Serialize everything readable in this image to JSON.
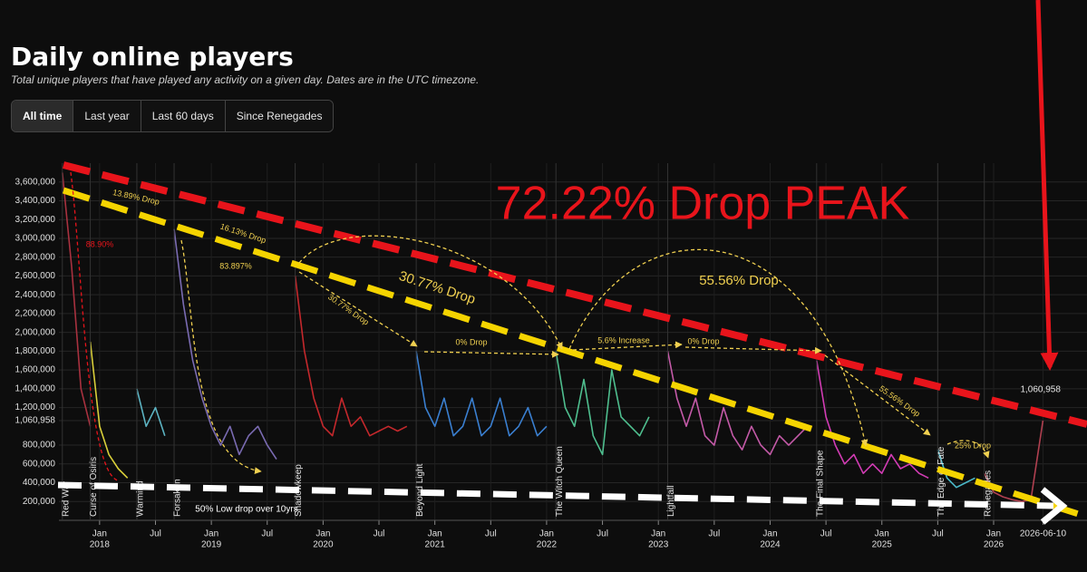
{
  "header": {
    "title": "Daily online players",
    "subtitle": "Total unique players that have played any activity on a given day. Dates are in the UTC timezone."
  },
  "tabs": [
    "All time",
    "Last year",
    "Last 60 days",
    "Since Renegades"
  ],
  "chart_data": {
    "type": "line",
    "ylim": [
      0,
      3800000
    ],
    "yticks": [
      {
        "value": 200000,
        "label": "200,000"
      },
      {
        "value": 400000,
        "label": "400,000"
      },
      {
        "value": 600000,
        "label": "600,000"
      },
      {
        "value": 800000,
        "label": "800,000"
      },
      {
        "value": 1060958,
        "label": "1,060,958"
      },
      {
        "value": 1200000,
        "label": "1,200,000"
      },
      {
        "value": 1400000,
        "label": "1,400,000"
      },
      {
        "value": 1600000,
        "label": "1,600,000"
      },
      {
        "value": 1800000,
        "label": "1,800,000"
      },
      {
        "value": 2000000,
        "label": "2,000,000"
      },
      {
        "value": 2200000,
        "label": "2,200,000"
      },
      {
        "value": 2400000,
        "label": "2,400,000"
      },
      {
        "value": 2600000,
        "label": "2,600,000"
      },
      {
        "value": 2800000,
        "label": "2,800,000"
      },
      {
        "value": 3000000,
        "label": "3,000,000"
      },
      {
        "value": 3200000,
        "label": "3,200,000"
      },
      {
        "value": 3400000,
        "label": "3,400,000"
      },
      {
        "value": 3600000,
        "label": "3,600,000"
      }
    ],
    "xlim": [
      "2017-08-20",
      "2026-07-05"
    ],
    "xticks": [
      {
        "value": "2018-01",
        "label": "Jan",
        "year": "2018"
      },
      {
        "value": "2018-07",
        "label": "Jul"
      },
      {
        "value": "2019-01",
        "label": "Jan",
        "year": "2019"
      },
      {
        "value": "2019-07",
        "label": "Jul"
      },
      {
        "value": "2020-01",
        "label": "Jan",
        "year": "2020"
      },
      {
        "value": "2020-07",
        "label": "Jul"
      },
      {
        "value": "2021-01",
        "label": "Jan",
        "year": "2021"
      },
      {
        "value": "2021-07",
        "label": "Jul"
      },
      {
        "value": "2022-01",
        "label": "Jan",
        "year": "2022"
      },
      {
        "value": "2022-07",
        "label": "Jul"
      },
      {
        "value": "2023-01",
        "label": "Jan",
        "year": "2023"
      },
      {
        "value": "2023-07",
        "label": "Jul"
      },
      {
        "value": "2024-01",
        "label": "Jan",
        "year": "2024"
      },
      {
        "value": "2024-07",
        "label": "Jul"
      },
      {
        "value": "2025-01",
        "label": "Jan",
        "year": "2025"
      },
      {
        "value": "2025-07",
        "label": "Jul"
      },
      {
        "value": "2026-01",
        "label": "Jan",
        "year": "2026"
      },
      {
        "value": "2026-06-10",
        "label": "2026-06-10"
      }
    ],
    "grid": true,
    "series": [
      {
        "name": "Red War",
        "color": "#a8313f",
        "x": [
          "2017-09",
          "2017-10",
          "2017-11",
          "2017-12"
        ],
        "values": [
          3700000,
          2700000,
          1400000,
          1000000
        ]
      },
      {
        "name": "Curse of Osiris",
        "color": "#d9cf3a",
        "x": [
          "2017-12",
          "2018-01",
          "2018-02",
          "2018-03",
          "2018-04"
        ],
        "values": [
          1900000,
          1000000,
          700000,
          550000,
          450000
        ]
      },
      {
        "name": "Warmind",
        "color": "#5cb3c2",
        "x": [
          "2018-05",
          "2018-06",
          "2018-07",
          "2018-08"
        ],
        "values": [
          1400000,
          1000000,
          1200000,
          900000
        ]
      },
      {
        "name": "Forsaken",
        "color": "#7a6bb2",
        "x": [
          "2018-09",
          "2018-10",
          "2018-11",
          "2018-12",
          "2019-01",
          "2019-02",
          "2019-03",
          "2019-04",
          "2019-05",
          "2019-06",
          "2019-07",
          "2019-08"
        ],
        "values": [
          3100000,
          2300000,
          1700000,
          1300000,
          1000000,
          800000,
          1000000,
          700000,
          900000,
          1000000,
          800000,
          650000
        ]
      },
      {
        "name": "Shadowkeep",
        "color": "#c4282c",
        "x": [
          "2019-10",
          "2019-11",
          "2019-12",
          "2020-01",
          "2020-02",
          "2020-03",
          "2020-04",
          "2020-05",
          "2020-06",
          "2020-07",
          "2020-08",
          "2020-09",
          "2020-10"
        ],
        "values": [
          2600000,
          1800000,
          1300000,
          1000000,
          900000,
          1300000,
          1000000,
          1100000,
          900000,
          950000,
          1000000,
          950000,
          1000000
        ]
      },
      {
        "name": "Beyond Light",
        "color": "#3a7fd0",
        "x": [
          "2020-11",
          "2020-12",
          "2021-01",
          "2021-02",
          "2021-03",
          "2021-04",
          "2021-05",
          "2021-06",
          "2021-07",
          "2021-08",
          "2021-09",
          "2021-10",
          "2021-11",
          "2021-12",
          "2022-01"
        ],
        "values": [
          1800000,
          1200000,
          1000000,
          1300000,
          900000,
          1000000,
          1300000,
          900000,
          1000000,
          1300000,
          900000,
          1000000,
          1200000,
          900000,
          1000000
        ]
      },
      {
        "name": "The Witch Queen",
        "color": "#4fbf8f",
        "x": [
          "2022-02",
          "2022-03",
          "2022-04",
          "2022-05",
          "2022-06",
          "2022-07",
          "2022-08",
          "2022-09",
          "2022-10",
          "2022-11",
          "2022-12"
        ],
        "values": [
          1800000,
          1200000,
          1000000,
          1500000,
          900000,
          700000,
          1600000,
          1100000,
          1000000,
          900000,
          1100000
        ]
      },
      {
        "name": "Lightfall",
        "color": "#c45aa8",
        "x": [
          "2023-02",
          "2023-03",
          "2023-04",
          "2023-05",
          "2023-06",
          "2023-07",
          "2023-08",
          "2023-09",
          "2023-10",
          "2023-11",
          "2023-12",
          "2024-01",
          "2024-02",
          "2024-03",
          "2024-04",
          "2024-05"
        ],
        "values": [
          1800000,
          1300000,
          1000000,
          1300000,
          900000,
          800000,
          1200000,
          900000,
          750000,
          1000000,
          800000,
          700000,
          900000,
          800000,
          900000,
          1000000
        ]
      },
      {
        "name": "The Final Shape",
        "color": "#d23cb4",
        "x": [
          "2024-06",
          "2024-07",
          "2024-08",
          "2024-09",
          "2024-10",
          "2024-11",
          "2024-12",
          "2025-01",
          "2025-02",
          "2025-03",
          "2025-04",
          "2025-05",
          "2025-06"
        ],
        "values": [
          1700000,
          1100000,
          800000,
          600000,
          700000,
          500000,
          600000,
          500000,
          700000,
          550000,
          600000,
          500000,
          450000
        ]
      },
      {
        "name": "The Edge of Fate",
        "color": "#4ab8c8",
        "x": [
          "2025-07",
          "2025-08",
          "2025-09",
          "2025-10",
          "2025-11"
        ],
        "values": [
          750000,
          450000,
          350000,
          400000,
          450000
        ]
      },
      {
        "name": "Renegades",
        "color": "#b04050",
        "x": [
          "2025-12",
          "2026-01",
          "2026-02",
          "2026-03",
          "2026-04",
          "2026-05",
          "2026-06-10"
        ],
        "values": [
          500000,
          300000,
          250000,
          220000,
          200000,
          220000,
          1060958
        ],
        "value_labels": [
          null,
          null,
          null,
          null,
          null,
          null,
          "1,060,958"
        ]
      }
    ],
    "annotations": [
      "72.22% Drop PEAK",
      "13.89% Drop",
      "16.13% Drop",
      "83.897%",
      "88.90%",
      "30.77% Drop",
      "30.77% Drop",
      "0% Drop",
      "5.6% Increase",
      "0% Drop",
      "55.56% Drop",
      "55.56% Drop",
      "25% Drop",
      "50% Low drop over 10yrs"
    ]
  }
}
